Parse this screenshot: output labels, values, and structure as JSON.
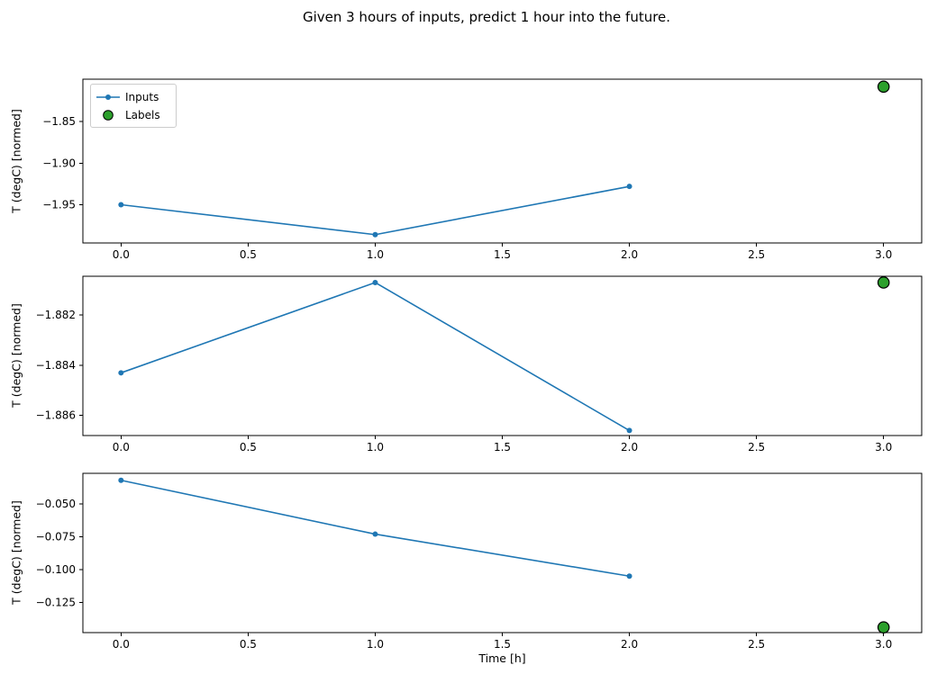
{
  "chart_data": {
    "type": "line",
    "title": "Given 3 hours of inputs, predict 1 hour into the future.",
    "xlabel": "Time [h]",
    "x_inputs": [
      0.0,
      1.0,
      2.0
    ],
    "label_x": 3.0,
    "xlim": [
      -0.15,
      3.15
    ],
    "xticks": [
      0.0,
      0.5,
      1.0,
      1.5,
      2.0,
      2.5,
      3.0
    ],
    "xtick_labels": [
      "0.0",
      "0.5",
      "1.0",
      "1.5",
      "2.0",
      "2.5",
      "3.0"
    ],
    "legend": {
      "position": "upper left of first subplot",
      "entries": [
        {
          "label": "Inputs",
          "type": "line-with-dot-marker"
        },
        {
          "label": "Labels",
          "type": "scatter-circle"
        }
      ]
    },
    "colors": {
      "inputs_line": "#1f77b4",
      "labels_marker": "#2ca02c",
      "labels_marker_edge": "#000000",
      "spine": "#000000",
      "legend_border": "#cccccc"
    },
    "subplots": [
      {
        "ylabel": "T (degC) [normed]",
        "inputs": [
          -1.95,
          -1.986,
          -1.928
        ],
        "label": -1.808,
        "ylim": [
          -1.996,
          -1.799
        ],
        "yticks": [
          -1.85,
          -1.9,
          -1.95
        ],
        "ytick_labels": [
          "−1.85",
          "−1.90",
          "−1.95"
        ],
        "grid": false
      },
      {
        "ylabel": "T (degC) [normed]",
        "inputs": [
          -1.8843,
          -1.8807,
          -1.8866
        ],
        "label": -1.8807,
        "ylim": [
          -1.8868,
          -1.88045
        ],
        "yticks": [
          -1.882,
          -1.884,
          -1.886
        ],
        "ytick_labels": [
          "−1.882",
          "−1.884",
          "−1.886"
        ],
        "grid": false
      },
      {
        "ylabel": "T (degC) [normed]",
        "inputs": [
          -0.032,
          -0.073,
          -0.105
        ],
        "label": -0.144,
        "ylim": [
          -0.148,
          -0.0267
        ],
        "yticks": [
          -0.05,
          -0.075,
          -0.1,
          -0.125
        ],
        "ytick_labels": [
          "−0.050",
          "−0.075",
          "−0.100",
          "−0.125"
        ],
        "grid": false
      }
    ]
  }
}
